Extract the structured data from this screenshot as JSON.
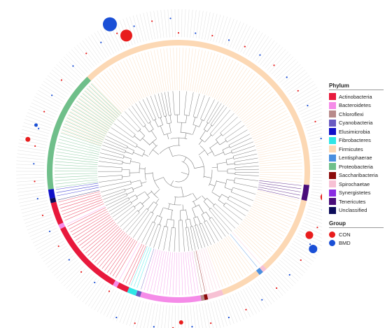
{
  "legend": {
    "phylum_title": "Phylum",
    "phyla": [
      {
        "name": "Actinobacteria",
        "color": "#e8193c"
      },
      {
        "name": "Bacteroidetes",
        "color": "#f58be8"
      },
      {
        "name": "Chloroflexi",
        "color": "#b88a8a"
      },
      {
        "name": "Cyanobacteria",
        "color": "#6a5bc1"
      },
      {
        "name": "Elusimicrobia",
        "color": "#1010c8"
      },
      {
        "name": "Fibrobacteres",
        "color": "#2ee6e6"
      },
      {
        "name": "Firmicutes",
        "color": "#fcd8b4"
      },
      {
        "name": "Lentisphaerae",
        "color": "#4a8fe0"
      },
      {
        "name": "Proteobacteria",
        "color": "#6fbf8a"
      },
      {
        "name": "Saccharibacteria",
        "color": "#8b0a0a"
      },
      {
        "name": "Spirochaetae",
        "color": "#f7c1d4"
      },
      {
        "name": "Synergistetes",
        "color": "#8a2be2"
      },
      {
        "name": "Tenericutes",
        "color": "#4a0d7a"
      },
      {
        "name": "Unclassified",
        "color": "#0c0c5a"
      }
    ],
    "group_title": "Group",
    "groups": [
      {
        "name": "CON",
        "color": "#e81c1c"
      },
      {
        "name": "BMD",
        "color": "#1a4fd6"
      }
    ]
  }
}
